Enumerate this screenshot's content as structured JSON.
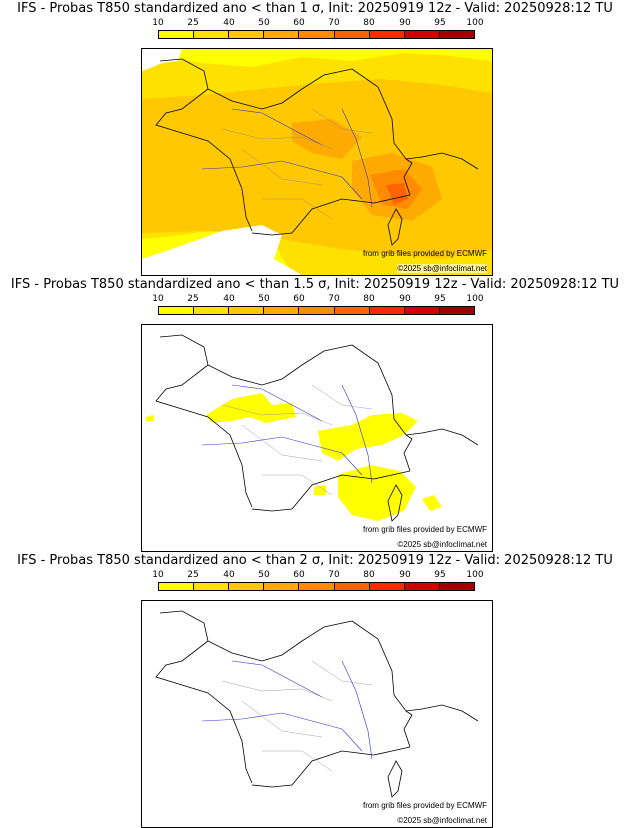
{
  "legend": {
    "ticks": [
      "10",
      "25",
      "40",
      "50",
      "60",
      "70",
      "80",
      "90",
      "95",
      "100"
    ],
    "colors": [
      "#ffff00",
      "#ffe100",
      "#ffc800",
      "#ffaa00",
      "#ff8c00",
      "#ff6400",
      "#ff2800",
      "#d20000",
      "#a00000",
      "#6e0000"
    ]
  },
  "panels": [
    {
      "title": "IFS - Probas T850  standardized ano < than 1 σ, Init: 20250919 12z - Valid: 20250928:12 TU",
      "sigma": "1",
      "coverage": "widespread"
    },
    {
      "title": "IFS - Probas T850  standardized ano < than 1.5 σ, Init: 20250919 12z - Valid: 20250928:12 TU",
      "sigma": "1.5",
      "coverage": "patchy"
    },
    {
      "title": "IFS - Probas T850  standardized ano < than 2 σ, Init: 20250919 12z - Valid: 20250928:12 TU",
      "sigma": "2",
      "coverage": "none"
    }
  ],
  "credits": {
    "source": "from grib files provided by ECMWF",
    "copyright": "©2025 sb@infoclimat.net"
  },
  "map_colors": {
    "coast": "#000000",
    "border": "#000000",
    "river": "#3333cc",
    "dept": "#888888",
    "water": "#ffffff"
  }
}
